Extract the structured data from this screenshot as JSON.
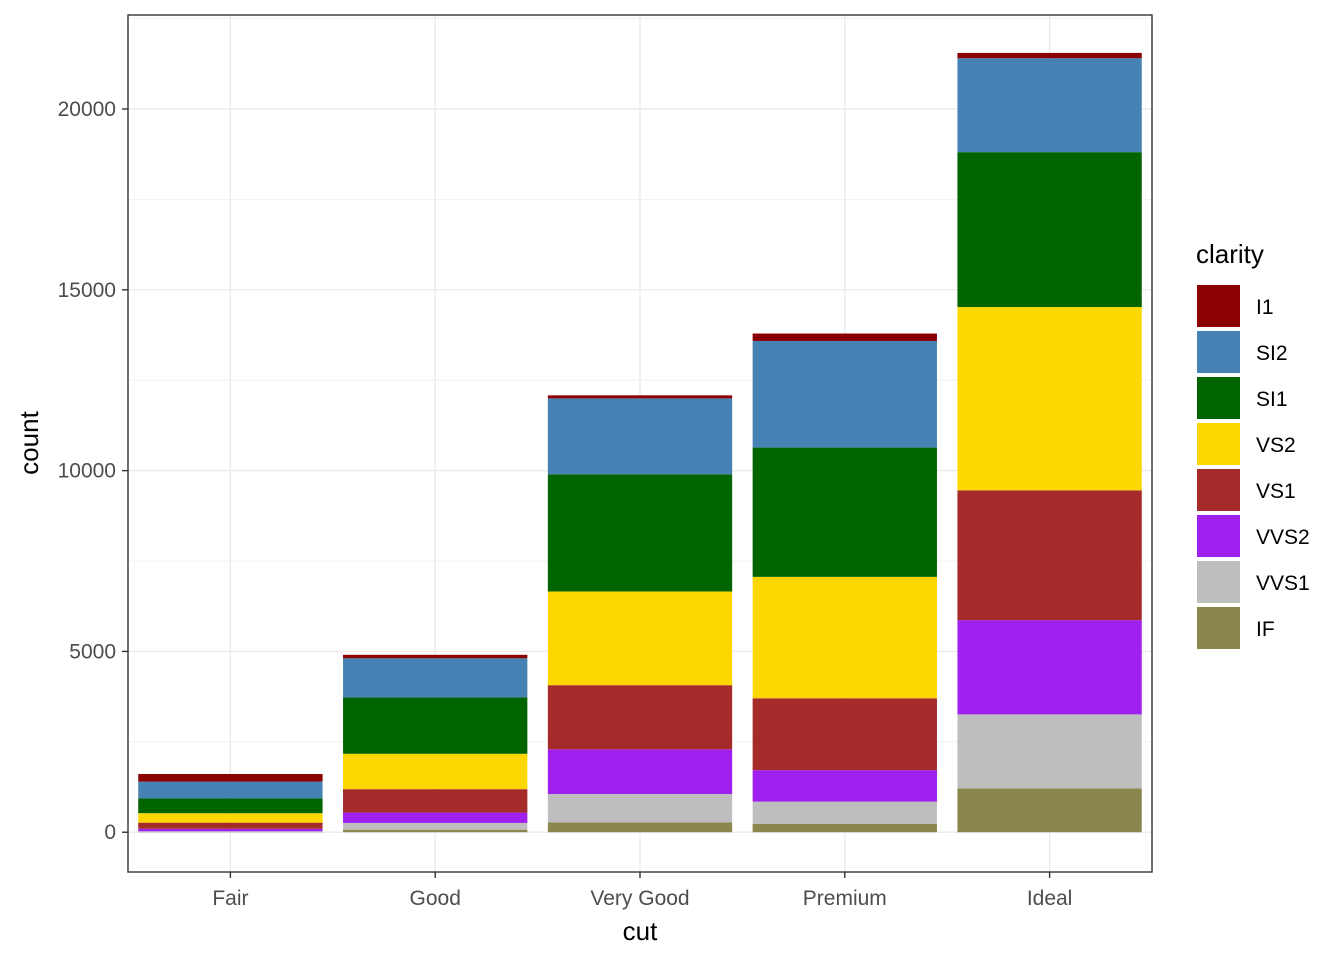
{
  "chart_data": {
    "type": "bar",
    "stacked": true,
    "title": "",
    "xlabel": "cut",
    "ylabel": "count",
    "categories": [
      "Fair",
      "Good",
      "Very Good",
      "Premium",
      "Ideal"
    ],
    "ylim": [
      -1100,
      22600
    ],
    "yticks": [
      0,
      5000,
      10000,
      15000,
      20000
    ],
    "grid": true,
    "legend": {
      "title": "clarity",
      "position": "right"
    },
    "series": [
      {
        "name": "IF",
        "color": "#8B864E",
        "values": [
          9,
          71,
          268,
          230,
          1212
        ]
      },
      {
        "name": "VVS1",
        "color": "#BEBEBE",
        "values": [
          17,
          186,
          789,
          616,
          2047
        ]
      },
      {
        "name": "VVS2",
        "color": "#A020F0",
        "values": [
          69,
          286,
          1235,
          870,
          2606
        ]
      },
      {
        "name": "VS1",
        "color": "#A52A2A",
        "values": [
          170,
          648,
          1775,
          1989,
          3589
        ]
      },
      {
        "name": "VS2",
        "color": "#FFD700",
        "values": [
          261,
          978,
          2591,
          3357,
          5071
        ]
      },
      {
        "name": "SI1",
        "color": "#006400",
        "values": [
          408,
          1560,
          3240,
          3575,
          4282
        ]
      },
      {
        "name": "SI2",
        "color": "#4682B4",
        "values": [
          466,
          1081,
          2100,
          2949,
          2598
        ]
      },
      {
        "name": "I1",
        "color": "#8B0000",
        "values": [
          210,
          96,
          84,
          205,
          146
        ]
      }
    ],
    "legend_order": [
      "I1",
      "SI2",
      "SI1",
      "VS2",
      "VS1",
      "VVS2",
      "VVS1",
      "IF"
    ]
  }
}
